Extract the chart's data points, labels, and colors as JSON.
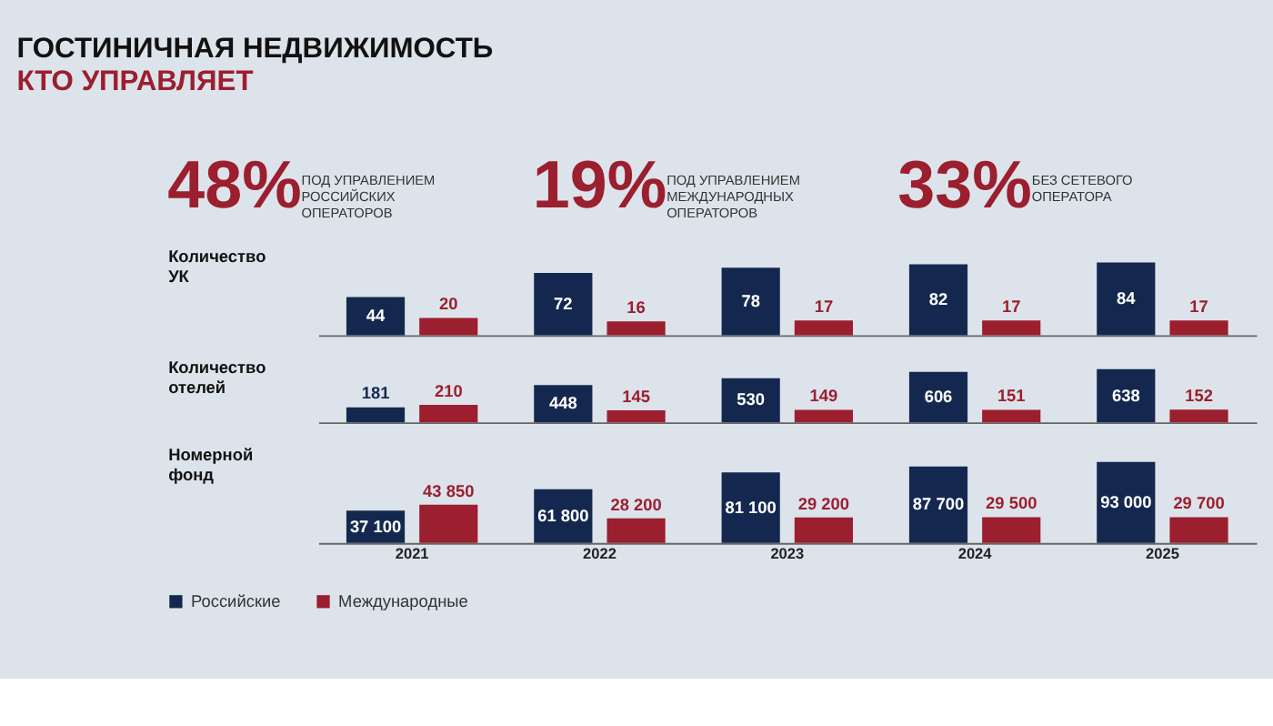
{
  "chart_data": [
    {
      "type": "other",
      "title": "ГОСТИНИЧНАЯ НЕДВИЖИМОСТЬ",
      "subtitle": "КТО УПРАВЛЯЕТ",
      "annotations": [
        "48%",
        "ПОД УПРАВЛЕНИЕМ\nРОССИЙСКИХ\nОПЕРАТОРОВ",
        "19%",
        "ПОД УПРАВЛЕНИЕМ\nМЕЖДУНАРОДНЫХ\nОПЕРАТОРОВ",
        "33%",
        "БЕЗ СЕТЕВОГО\nОПЕРАТОРА"
      ]
    },
    {
      "type": "bar",
      "ylabel": "Количество\nУК",
      "categories": [
        "2021",
        "2022",
        "2023",
        "2024",
        "2025"
      ],
      "data_labels": true,
      "tick_labels": false,
      "legend": false,
      "grid": false,
      "series": [
        {
          "color": "#14284f",
          "values": [
            44,
            72,
            78,
            82,
            84
          ]
        },
        {
          "color": "#9b1f2e",
          "values": [
            20,
            16,
            17,
            17,
            17
          ]
        }
      ]
    },
    {
      "type": "bar",
      "ylabel": "Количество\nотелей",
      "categories": [
        "2021",
        "2022",
        "2023",
        "2024",
        "2025"
      ],
      "data_labels": true,
      "tick_labels": false,
      "legend": false,
      "grid": false,
      "series": [
        {
          "color": "#14284f",
          "values": [
            181,
            448,
            530,
            606,
            638
          ]
        },
        {
          "color": "#9b1f2e",
          "values": [
            210,
            145,
            149,
            151,
            152
          ]
        }
      ]
    },
    {
      "type": "bar",
      "ylabel": "Номерной\nфонд",
      "categories": [
        "2021",
        "2022",
        "2023",
        "2024",
        "2025"
      ],
      "tick_labels": "x",
      "legend": "bottom left",
      "grid": false,
      "series": [
        {
          "name": "Российские",
          "color": "#14284f",
          "values": [
            37100,
            61800,
            81100,
            87700,
            93000
          ],
          "value_labels": [
            "37 100",
            "61 800",
            "81 100",
            "87 700",
            "93 000"
          ]
        },
        {
          "name": "Международные",
          "color": "#9b1f2e",
          "values": [
            43850,
            28200,
            29200,
            29500,
            29700
          ],
          "value_labels": [
            "43 850",
            "28 200",
            "29 200",
            "29 500",
            "29 700"
          ]
        }
      ]
    }
  ]
}
